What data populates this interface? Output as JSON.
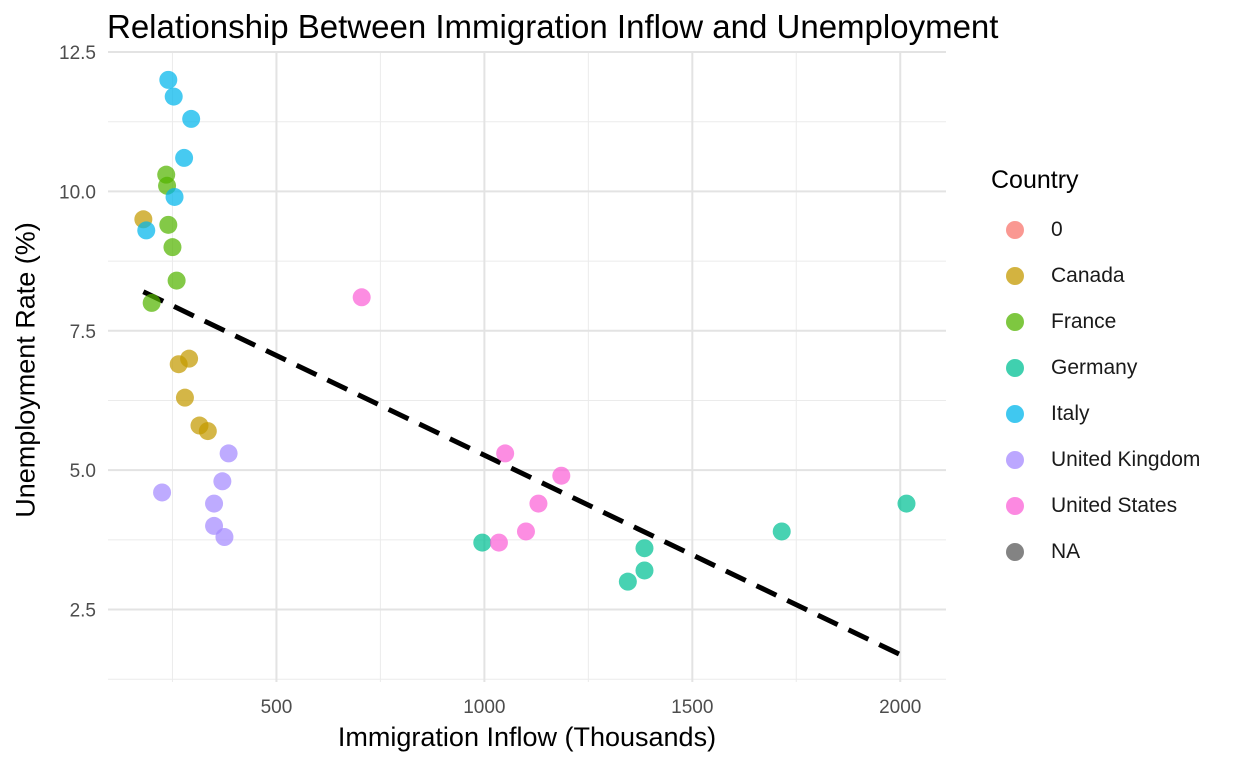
{
  "chart_data": {
    "type": "scatter",
    "title": "Relationship Between Immigration Inflow and Unemployment",
    "xlabel": "Immigration Inflow (Thousands)",
    "ylabel": "Unemployment Rate (%)",
    "xlim": [
      95,
      2110
    ],
    "ylim": [
      1.2,
      12.5
    ],
    "x_ticks": [
      500,
      1000,
      1500,
      2000
    ],
    "x_tick_labels": [
      "500",
      "1000",
      "1500",
      "2000"
    ],
    "y_ticks": [
      2.5,
      5.0,
      7.5,
      10.0,
      12.5
    ],
    "y_tick_labels": [
      "2.5",
      "5.0",
      "7.5",
      "10.0",
      "12.5"
    ],
    "grid": true,
    "legend": {
      "title": "Country",
      "placement": "right",
      "entries": [
        {
          "label": "0",
          "color": "#F8766D"
        },
        {
          "label": "Canada",
          "color": "#C49A00"
        },
        {
          "label": "France",
          "color": "#53B400"
        },
        {
          "label": "Germany",
          "color": "#00C094"
        },
        {
          "label": "Italy",
          "color": "#00B6EB"
        },
        {
          "label": "United Kingdom",
          "color": "#A58AFF"
        },
        {
          "label": "United States",
          "color": "#FB61D7"
        },
        {
          "label": "NA",
          "color": "#595959"
        }
      ]
    },
    "series": [
      {
        "name": "Canada",
        "color": "#C49A00",
        "points": [
          [
            180,
            9.5
          ],
          [
            265,
            6.9
          ],
          [
            290,
            7.0
          ],
          [
            280,
            6.3
          ],
          [
            315,
            5.8
          ],
          [
            335,
            5.7
          ]
        ]
      },
      {
        "name": "France",
        "color": "#53B400",
        "points": [
          [
            235,
            10.3
          ],
          [
            237,
            10.1
          ],
          [
            240,
            9.4
          ],
          [
            250,
            9.0
          ],
          [
            260,
            8.4
          ],
          [
            200,
            8.0
          ]
        ]
      },
      {
        "name": "Germany",
        "color": "#00C094",
        "points": [
          [
            995,
            3.7
          ],
          [
            1345,
            3.0
          ],
          [
            1385,
            3.6
          ],
          [
            1385,
            3.2
          ],
          [
            1715,
            3.9
          ],
          [
            2015,
            4.4
          ]
        ]
      },
      {
        "name": "Italy",
        "color": "#00B6EB",
        "points": [
          [
            240,
            12.0
          ],
          [
            253,
            11.7
          ],
          [
            295,
            11.3
          ],
          [
            278,
            10.6
          ],
          [
            255,
            9.9
          ],
          [
            187,
            9.3
          ]
        ]
      },
      {
        "name": "United Kingdom",
        "color": "#A58AFF",
        "points": [
          [
            225,
            4.6
          ],
          [
            385,
            5.3
          ],
          [
            370,
            4.8
          ],
          [
            350,
            4.4
          ],
          [
            350,
            4.0
          ],
          [
            375,
            3.8
          ]
        ]
      },
      {
        "name": "United States",
        "color": "#FB61D7",
        "points": [
          [
            705,
            8.1
          ],
          [
            1050,
            5.3
          ],
          [
            1185,
            4.9
          ],
          [
            1130,
            4.4
          ],
          [
            1100,
            3.9
          ],
          [
            1035,
            3.7
          ]
        ]
      }
    ],
    "trend_line": {
      "style": "dashed",
      "color": "#000000",
      "x": [
        180,
        2020
      ],
      "y": [
        8.2,
        1.62
      ]
    }
  }
}
